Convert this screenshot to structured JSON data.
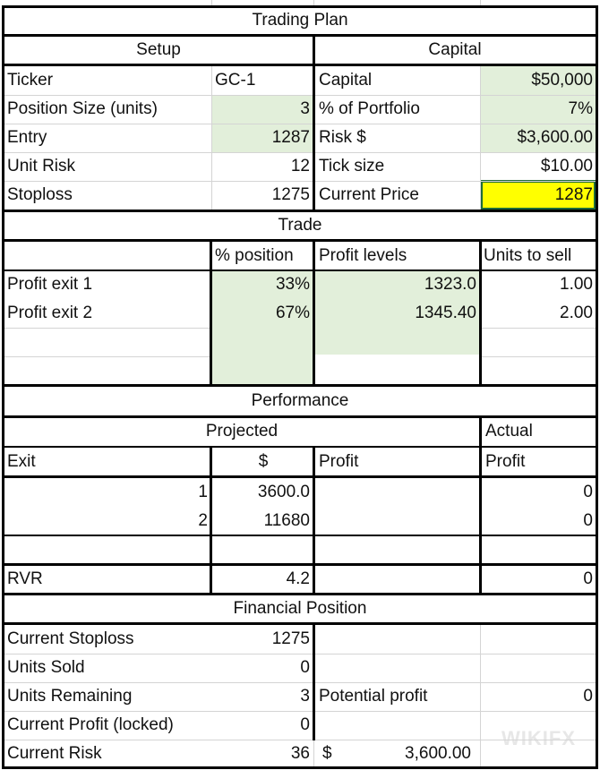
{
  "colors": {
    "input_fill": "#e2efda",
    "highlight_fill": "#ffff00",
    "highlight_border": "#1e6b3a",
    "gridline": "#d4d4d4"
  },
  "title": "Trading Plan",
  "setup": {
    "header": "Setup",
    "rows": [
      {
        "label": "Ticker",
        "value": "GC-1"
      },
      {
        "label": "Position Size (units)",
        "value": "3"
      },
      {
        "label": "Entry",
        "value": "1287"
      },
      {
        "label": "Unit Risk",
        "value": "12"
      },
      {
        "label": "Stoploss",
        "value": "1275"
      }
    ]
  },
  "capital": {
    "header": "Capital",
    "rows": [
      {
        "label": "Capital",
        "value": "$50,000"
      },
      {
        "label": "% of Portfolio",
        "value": "7%"
      },
      {
        "label": "Risk $",
        "value": "$3,600.00"
      },
      {
        "label": "Tick size",
        "value": "$10.00"
      },
      {
        "label": "Current Price",
        "value": "1287"
      }
    ]
  },
  "trade": {
    "header": "Trade",
    "columns": [
      "% position",
      "Profit levels",
      "Units to sell"
    ],
    "rows": [
      {
        "label": "Profit exit 1",
        "pct": "33%",
        "level": "1323.0",
        "units": "1.00"
      },
      {
        "label": "Profit exit 2",
        "pct": "67%",
        "level": "1345.40",
        "units": "2.00"
      }
    ]
  },
  "performance": {
    "header": "Performance",
    "projected": "Projected",
    "actual": "Actual",
    "columns": [
      "Exit",
      "$",
      "Profit",
      "Profit"
    ],
    "rows": [
      {
        "exit": "1",
        "dollars": "3600.0",
        "profit": "",
        "actual": "0"
      },
      {
        "exit": "2",
        "dollars": "11680",
        "profit": "",
        "actual": "0"
      }
    ],
    "rvr_label": "RVR",
    "rvr_value": "4.2",
    "rvr_actual": "0"
  },
  "financial": {
    "header": "Financial Position",
    "rows": [
      {
        "label": "Current Stoploss",
        "value": "1275"
      },
      {
        "label": "Units Sold",
        "value": "0"
      },
      {
        "label": "Units Remaining",
        "value": "3"
      },
      {
        "label": "Current Profit (locked)",
        "value": "0"
      },
      {
        "label": "Current Risk",
        "value": "36"
      }
    ],
    "potential_label": "Potential profit",
    "potential_value": "0",
    "risk_currency": "$",
    "risk_amount": "3,600.00"
  },
  "watermark": "WIKIFX"
}
